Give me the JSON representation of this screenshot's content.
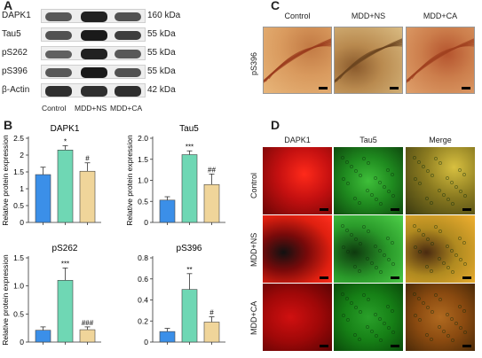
{
  "panels": {
    "A": "A",
    "B": "B",
    "C": "C",
    "D": "D"
  },
  "western_blot": {
    "conditions": [
      "Control",
      "MDD+NS",
      "MDD+CA"
    ],
    "rows": [
      {
        "name": "DAPK1",
        "kda": "160 kDa",
        "intensity": [
          0.55,
          0.95,
          0.6
        ]
      },
      {
        "name": "Tau5",
        "kda": "55 kDa",
        "intensity": [
          0.6,
          1.0,
          0.75
        ]
      },
      {
        "name": "pS262",
        "kda": "55 kDa",
        "intensity": [
          0.5,
          0.95,
          0.55
        ]
      },
      {
        "name": "pS396",
        "kda": "55 kDa",
        "intensity": [
          0.55,
          1.0,
          0.6
        ]
      },
      {
        "name": "β-Actin",
        "kda": "42 kDa",
        "intensity": [
          0.85,
          0.85,
          0.85
        ]
      }
    ]
  },
  "chart_data": [
    {
      "type": "bar",
      "title": "DAPK1",
      "ylabel": "Relative protein expression",
      "ylim": [
        0,
        2.5
      ],
      "yticks": [
        0,
        0.5,
        1,
        1.5,
        2,
        2.5
      ],
      "ytick_labels": [
        "0",
        "0.5",
        "1",
        "1.5",
        "2",
        "2.5"
      ],
      "values": [
        1.42,
        2.15,
        1.52
      ],
      "errors": [
        0.22,
        0.13,
        0.25
      ],
      "annotations": [
        "",
        "*",
        "#"
      ]
    },
    {
      "type": "bar",
      "title": "Tau5",
      "ylabel": "Relative protein expression",
      "ylim": [
        0,
        2.0
      ],
      "yticks": [
        0,
        0.5,
        1,
        1.5,
        2
      ],
      "ytick_labels": [
        "0",
        "0.5",
        "1.0",
        "1.5",
        "2.0"
      ],
      "values": [
        0.53,
        1.61,
        0.9
      ],
      "errors": [
        0.08,
        0.09,
        0.25
      ],
      "annotations": [
        "",
        "***",
        "##"
      ]
    },
    {
      "type": "bar",
      "title": "pS262",
      "ylabel": "Relative protein expression",
      "ylim": [
        0,
        1.5
      ],
      "yticks": [
        0,
        0.5,
        1,
        1.5
      ],
      "ytick_labels": [
        "0",
        "0.5",
        "1.0",
        "1.5"
      ],
      "values": [
        0.21,
        1.1,
        0.22
      ],
      "errors": [
        0.06,
        0.22,
        0.05
      ],
      "annotations": [
        "",
        "***",
        "###"
      ]
    },
    {
      "type": "bar",
      "title": "pS396",
      "ylabel": "",
      "ylim": [
        0,
        0.8
      ],
      "yticks": [
        0,
        0.2,
        0.4,
        0.6,
        0.8
      ],
      "ytick_labels": [
        "0",
        "0.2",
        "0.4",
        "0.6",
        "0.8"
      ],
      "values": [
        0.1,
        0.5,
        0.19
      ],
      "errors": [
        0.03,
        0.15,
        0.05
      ],
      "annotations": [
        "",
        "**",
        "#"
      ]
    }
  ],
  "bar_colors": [
    "#3b8fe8",
    "#6fd7b4",
    "#f0d59a"
  ],
  "ihc": {
    "row_label": "pS396",
    "columns": [
      "Control",
      "MDD+NS",
      "MDD+CA"
    ]
  },
  "if": {
    "columns": [
      "DAPK1",
      "Tau5",
      "Merge"
    ],
    "rows": [
      "Control",
      "MDD+NS",
      "MDD+CA"
    ]
  }
}
